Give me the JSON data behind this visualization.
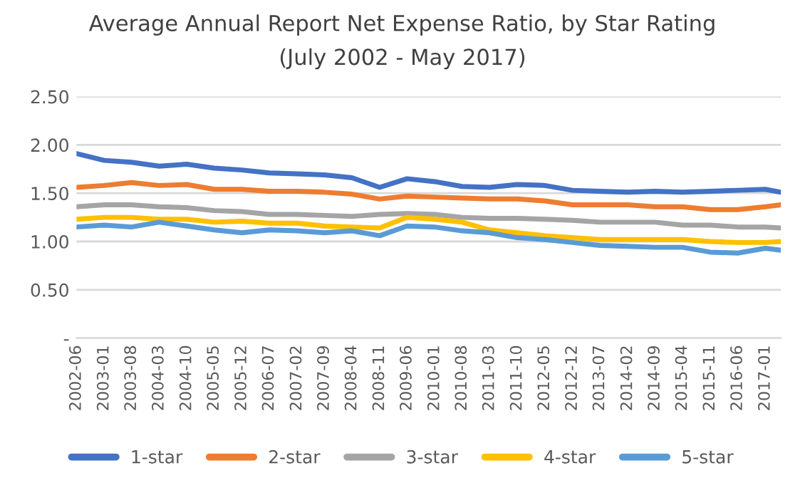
{
  "chart_data": {
    "type": "line",
    "title": "Average Annual Report Net Expense Ratio, by Star Rating",
    "subtitle": "(July 2002 - May 2017)",
    "x": [
      "2002-06",
      "2003-01",
      "2003-08",
      "2004-03",
      "2004-10",
      "2005-05",
      "2005-12",
      "2006-07",
      "2007-02",
      "2007-09",
      "2008-04",
      "2008-11",
      "2009-06",
      "2010-01",
      "2010-08",
      "2011-03",
      "2011-10",
      "2012-05",
      "2012-12",
      "2013-07",
      "2014-02",
      "2014-09",
      "2015-04",
      "2015-11",
      "2016-06",
      "2017-01",
      "2017-05"
    ],
    "series": [
      {
        "name": "1-star",
        "color": "#4472c4",
        "values": [
          1.91,
          1.84,
          1.82,
          1.78,
          1.8,
          1.76,
          1.74,
          1.71,
          1.7,
          1.69,
          1.66,
          1.56,
          1.65,
          1.62,
          1.57,
          1.56,
          1.59,
          1.58,
          1.53,
          1.52,
          1.51,
          1.52,
          1.51,
          1.52,
          1.53,
          1.54,
          1.51
        ]
      },
      {
        "name": "2-star",
        "color": "#ed7d31",
        "values": [
          1.56,
          1.58,
          1.61,
          1.58,
          1.59,
          1.54,
          1.54,
          1.52,
          1.52,
          1.51,
          1.49,
          1.44,
          1.47,
          1.46,
          1.45,
          1.44,
          1.44,
          1.42,
          1.38,
          1.38,
          1.38,
          1.36,
          1.36,
          1.33,
          1.33,
          1.36,
          1.38
        ]
      },
      {
        "name": "3-star",
        "color": "#a5a5a5",
        "values": [
          1.36,
          1.38,
          1.38,
          1.36,
          1.35,
          1.32,
          1.31,
          1.28,
          1.28,
          1.27,
          1.26,
          1.28,
          1.29,
          1.28,
          1.25,
          1.24,
          1.24,
          1.23,
          1.22,
          1.2,
          1.2,
          1.2,
          1.17,
          1.17,
          1.15,
          1.15,
          1.14
        ]
      },
      {
        "name": "4-star",
        "color": "#ffc000",
        "values": [
          1.23,
          1.25,
          1.25,
          1.23,
          1.23,
          1.2,
          1.21,
          1.19,
          1.19,
          1.16,
          1.15,
          1.14,
          1.25,
          1.23,
          1.2,
          1.12,
          1.09,
          1.06,
          1.04,
          1.02,
          1.02,
          1.02,
          1.02,
          1.0,
          0.99,
          0.99,
          1.0
        ]
      },
      {
        "name": "5-star",
        "color": "#5b9bd5",
        "values": [
          1.15,
          1.17,
          1.15,
          1.2,
          1.16,
          1.12,
          1.09,
          1.12,
          1.11,
          1.09,
          1.11,
          1.06,
          1.16,
          1.15,
          1.11,
          1.09,
          1.04,
          1.02,
          0.99,
          0.96,
          0.95,
          0.94,
          0.94,
          0.89,
          0.88,
          0.93,
          0.91
        ]
      }
    ],
    "xlim": [
      "2002-06",
      "2017-05"
    ],
    "xticks": [
      "2002-06",
      "2003-01",
      "2003-08",
      "2004-03",
      "2004-10",
      "2005-05",
      "2005-12",
      "2006-07",
      "2007-02",
      "2007-09",
      "2008-04",
      "2008-11",
      "2009-06",
      "2010-01",
      "2010-08",
      "2011-03",
      "2011-10",
      "2012-05",
      "2012-12",
      "2013-07",
      "2014-02",
      "2014-09",
      "2015-04",
      "2015-11",
      "2016-06",
      "2017-01"
    ],
    "ylim": [
      0,
      2.5
    ],
    "yticks": [
      {
        "value": 0,
        "label": "-"
      },
      {
        "value": 0.5,
        "label": "0.50"
      },
      {
        "value": 1.0,
        "label": "1.00"
      },
      {
        "value": 1.5,
        "label": "1.50"
      },
      {
        "value": 2.0,
        "label": "2.00"
      },
      {
        "value": 2.5,
        "label": "2.50"
      }
    ],
    "grid": "y",
    "legend": "bottom",
    "marker": "none",
    "line_style": "solid"
  }
}
